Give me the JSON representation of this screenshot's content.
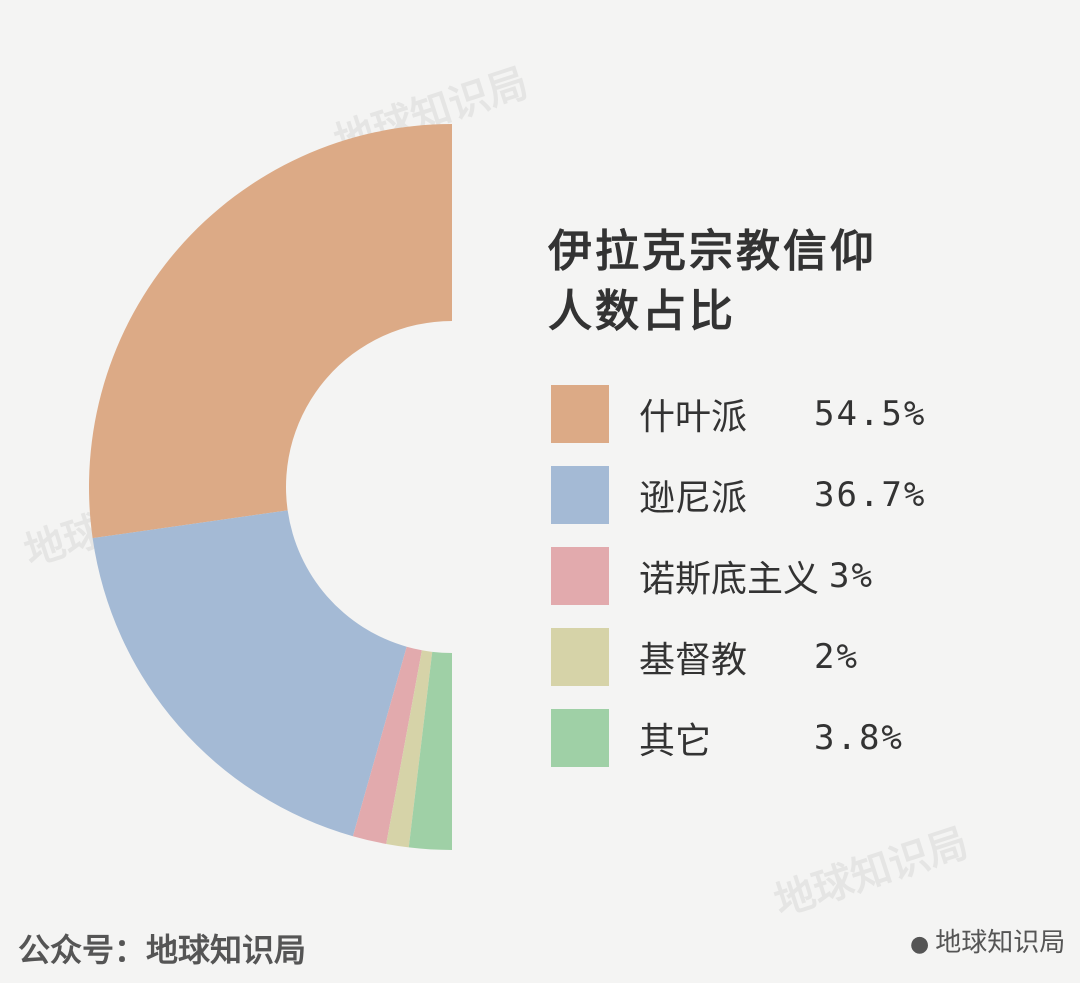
{
  "chart_data": {
    "type": "pie",
    "donut": true,
    "half": "left",
    "title": "伊拉克宗教信仰人数占比",
    "categories": [
      "什叶派",
      "逊尼派",
      "诺斯底主义",
      "基督教",
      "其它"
    ],
    "values": [
      54.5,
      36.7,
      3,
      2,
      3.8
    ],
    "value_labels": [
      "54.5%",
      "36.7%",
      "3%",
      "2%",
      "3.8%"
    ],
    "colors": [
      "#dcaa86",
      "#a4bad5",
      "#e2aaad",
      "#d6d3a8",
      "#9fd0a6"
    ]
  },
  "footer": {
    "source": "公众号：地球知识局",
    "watermark": "地球知识局"
  }
}
